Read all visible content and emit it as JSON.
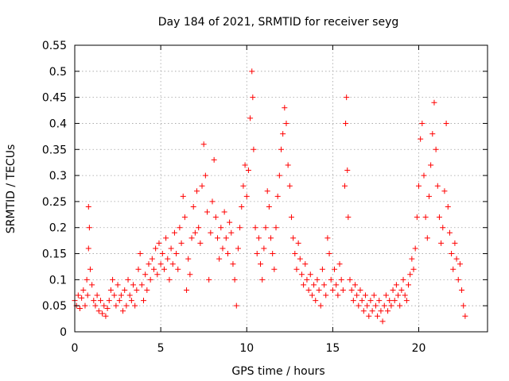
{
  "chart_data": {
    "type": "scatter",
    "title": "Day 184 of 2021, SRMTID for receiver seyg",
    "xlabel": "GPS time / hours",
    "ylabel": "SRMTID / TECUs",
    "xlim": [
      0,
      24
    ],
    "ylim": [
      0,
      0.55
    ],
    "xticks": [
      0,
      5,
      10,
      15,
      20
    ],
    "xtick_labels": [
      "0",
      "5",
      "10",
      "15",
      "20"
    ],
    "yticks": [
      0,
      0.05,
      0.1,
      0.15,
      0.2,
      0.25,
      0.3,
      0.35,
      0.4,
      0.45,
      0.5,
      0.55
    ],
    "ytick_labels": [
      "0",
      "0.05",
      "0.1",
      "0.15",
      "0.2",
      "0.25",
      "0.3",
      "0.35",
      "0.4",
      "0.45",
      "0.5",
      "0.55"
    ],
    "grid": true,
    "marker": "+",
    "series": [
      {
        "name": "SRMTID",
        "color": "#ff0000",
        "points": [
          [
            0.0,
            0.06
          ],
          [
            0.1,
            0.05
          ],
          [
            0.2,
            0.07
          ],
          [
            0.3,
            0.045
          ],
          [
            0.4,
            0.065
          ],
          [
            0.5,
            0.08
          ],
          [
            0.6,
            0.05
          ],
          [
            0.7,
            0.1
          ],
          [
            0.75,
            0.07
          ],
          [
            0.8,
            0.24
          ],
          [
            0.85,
            0.2
          ],
          [
            0.8,
            0.16
          ],
          [
            0.9,
            0.12
          ],
          [
            1.0,
            0.09
          ],
          [
            1.1,
            0.06
          ],
          [
            1.2,
            0.05
          ],
          [
            1.3,
            0.07
          ],
          [
            1.4,
            0.04
          ],
          [
            1.5,
            0.06
          ],
          [
            1.6,
            0.035
          ],
          [
            1.7,
            0.05
          ],
          [
            1.8,
            0.03
          ],
          [
            1.9,
            0.045
          ],
          [
            2.0,
            0.06
          ],
          [
            2.1,
            0.08
          ],
          [
            2.2,
            0.1
          ],
          [
            2.3,
            0.07
          ],
          [
            2.4,
            0.05
          ],
          [
            2.5,
            0.09
          ],
          [
            2.6,
            0.06
          ],
          [
            2.7,
            0.07
          ],
          [
            2.8,
            0.04
          ],
          [
            2.9,
            0.08
          ],
          [
            3.0,
            0.05
          ],
          [
            3.1,
            0.1
          ],
          [
            3.2,
            0.07
          ],
          [
            3.3,
            0.06
          ],
          [
            3.4,
            0.09
          ],
          [
            3.5,
            0.05
          ],
          [
            3.6,
            0.08
          ],
          [
            3.7,
            0.12
          ],
          [
            3.8,
            0.15
          ],
          [
            3.9,
            0.09
          ],
          [
            4.0,
            0.06
          ],
          [
            4.1,
            0.11
          ],
          [
            4.2,
            0.08
          ],
          [
            4.3,
            0.13
          ],
          [
            4.4,
            0.1
          ],
          [
            4.5,
            0.14
          ],
          [
            4.6,
            0.12
          ],
          [
            4.7,
            0.16
          ],
          [
            4.8,
            0.11
          ],
          [
            4.9,
            0.17
          ],
          [
            5.0,
            0.13
          ],
          [
            5.1,
            0.15
          ],
          [
            5.2,
            0.12
          ],
          [
            5.3,
            0.18
          ],
          [
            5.4,
            0.14
          ],
          [
            5.5,
            0.1
          ],
          [
            5.6,
            0.16
          ],
          [
            5.7,
            0.13
          ],
          [
            5.8,
            0.19
          ],
          [
            5.9,
            0.15
          ],
          [
            6.0,
            0.12
          ],
          [
            6.1,
            0.2
          ],
          [
            6.2,
            0.17
          ],
          [
            6.3,
            0.26
          ],
          [
            6.4,
            0.22
          ],
          [
            6.5,
            0.08
          ],
          [
            6.6,
            0.14
          ],
          [
            6.7,
            0.11
          ],
          [
            6.8,
            0.18
          ],
          [
            6.9,
            0.24
          ],
          [
            7.0,
            0.19
          ],
          [
            7.1,
            0.27
          ],
          [
            7.2,
            0.2
          ],
          [
            7.3,
            0.17
          ],
          [
            7.4,
            0.28
          ],
          [
            7.5,
            0.36
          ],
          [
            7.6,
            0.3
          ],
          [
            7.7,
            0.23
          ],
          [
            7.8,
            0.1
          ],
          [
            7.9,
            0.19
          ],
          [
            8.0,
            0.25
          ],
          [
            8.1,
            0.33
          ],
          [
            8.2,
            0.22
          ],
          [
            8.3,
            0.18
          ],
          [
            8.4,
            0.14
          ],
          [
            8.5,
            0.2
          ],
          [
            8.6,
            0.16
          ],
          [
            8.7,
            0.23
          ],
          [
            8.8,
            0.18
          ],
          [
            8.9,
            0.15
          ],
          [
            9.0,
            0.21
          ],
          [
            9.1,
            0.19
          ],
          [
            9.2,
            0.13
          ],
          [
            9.3,
            0.1
          ],
          [
            9.4,
            0.05
          ],
          [
            9.5,
            0.16
          ],
          [
            9.6,
            0.2
          ],
          [
            9.7,
            0.24
          ],
          [
            9.8,
            0.28
          ],
          [
            9.9,
            0.32
          ],
          [
            10.0,
            0.26
          ],
          [
            10.1,
            0.31
          ],
          [
            10.2,
            0.41
          ],
          [
            10.3,
            0.5
          ],
          [
            10.35,
            0.45
          ],
          [
            10.4,
            0.35
          ],
          [
            10.5,
            0.2
          ],
          [
            10.6,
            0.15
          ],
          [
            10.7,
            0.18
          ],
          [
            10.8,
            0.13
          ],
          [
            10.9,
            0.1
          ],
          [
            11.0,
            0.16
          ],
          [
            11.1,
            0.2
          ],
          [
            11.2,
            0.27
          ],
          [
            11.3,
            0.24
          ],
          [
            11.4,
            0.18
          ],
          [
            11.5,
            0.15
          ],
          [
            11.6,
            0.12
          ],
          [
            11.7,
            0.2
          ],
          [
            11.8,
            0.26
          ],
          [
            11.9,
            0.3
          ],
          [
            12.0,
            0.35
          ],
          [
            12.1,
            0.38
          ],
          [
            12.2,
            0.43
          ],
          [
            12.3,
            0.4
          ],
          [
            12.4,
            0.32
          ],
          [
            12.5,
            0.28
          ],
          [
            12.6,
            0.22
          ],
          [
            12.7,
            0.18
          ],
          [
            12.8,
            0.15
          ],
          [
            12.9,
            0.12
          ],
          [
            13.0,
            0.17
          ],
          [
            13.1,
            0.14
          ],
          [
            13.2,
            0.11
          ],
          [
            13.3,
            0.09
          ],
          [
            13.4,
            0.13
          ],
          [
            13.5,
            0.1
          ],
          [
            13.6,
            0.08
          ],
          [
            13.7,
            0.11
          ],
          [
            13.8,
            0.07
          ],
          [
            13.9,
            0.09
          ],
          [
            14.0,
            0.06
          ],
          [
            14.1,
            0.1
          ],
          [
            14.2,
            0.08
          ],
          [
            14.3,
            0.05
          ],
          [
            14.4,
            0.12
          ],
          [
            14.5,
            0.09
          ],
          [
            14.6,
            0.07
          ],
          [
            14.7,
            0.18
          ],
          [
            14.8,
            0.15
          ],
          [
            14.9,
            0.1
          ],
          [
            15.0,
            0.08
          ],
          [
            15.1,
            0.12
          ],
          [
            15.2,
            0.09
          ],
          [
            15.3,
            0.07
          ],
          [
            15.4,
            0.13
          ],
          [
            15.5,
            0.1
          ],
          [
            15.6,
            0.08
          ],
          [
            15.7,
            0.28
          ],
          [
            15.75,
            0.4
          ],
          [
            15.8,
            0.45
          ],
          [
            15.85,
            0.31
          ],
          [
            15.9,
            0.22
          ],
          [
            16.0,
            0.1
          ],
          [
            16.1,
            0.08
          ],
          [
            16.2,
            0.06
          ],
          [
            16.3,
            0.09
          ],
          [
            16.4,
            0.07
          ],
          [
            16.5,
            0.05
          ],
          [
            16.6,
            0.08
          ],
          [
            16.7,
            0.06
          ],
          [
            16.8,
            0.04
          ],
          [
            16.9,
            0.07
          ],
          [
            17.0,
            0.05
          ],
          [
            17.1,
            0.03
          ],
          [
            17.2,
            0.06
          ],
          [
            17.3,
            0.04
          ],
          [
            17.4,
            0.07
          ],
          [
            17.5,
            0.05
          ],
          [
            17.6,
            0.03
          ],
          [
            17.7,
            0.06
          ],
          [
            17.8,
            0.04
          ],
          [
            17.9,
            0.02
          ],
          [
            18.0,
            0.05
          ],
          [
            18.1,
            0.07
          ],
          [
            18.2,
            0.04
          ],
          [
            18.3,
            0.06
          ],
          [
            18.4,
            0.05
          ],
          [
            18.5,
            0.08
          ],
          [
            18.6,
            0.06
          ],
          [
            18.7,
            0.09
          ],
          [
            18.8,
            0.07
          ],
          [
            18.9,
            0.05
          ],
          [
            19.0,
            0.08
          ],
          [
            19.1,
            0.1
          ],
          [
            19.2,
            0.07
          ],
          [
            19.3,
            0.06
          ],
          [
            19.4,
            0.09
          ],
          [
            19.5,
            0.11
          ],
          [
            19.6,
            0.14
          ],
          [
            19.7,
            0.12
          ],
          [
            19.8,
            0.16
          ],
          [
            19.9,
            0.22
          ],
          [
            20.0,
            0.28
          ],
          [
            20.1,
            0.37
          ],
          [
            20.2,
            0.4
          ],
          [
            20.3,
            0.3
          ],
          [
            20.4,
            0.22
          ],
          [
            20.5,
            0.18
          ],
          [
            20.6,
            0.26
          ],
          [
            20.7,
            0.32
          ],
          [
            20.8,
            0.38
          ],
          [
            20.9,
            0.44
          ],
          [
            21.0,
            0.35
          ],
          [
            21.1,
            0.28
          ],
          [
            21.2,
            0.22
          ],
          [
            21.3,
            0.17
          ],
          [
            21.4,
            0.2
          ],
          [
            21.5,
            0.27
          ],
          [
            21.6,
            0.4
          ],
          [
            21.7,
            0.24
          ],
          [
            21.8,
            0.19
          ],
          [
            21.9,
            0.15
          ],
          [
            22.0,
            0.12
          ],
          [
            22.1,
            0.17
          ],
          [
            22.2,
            0.14
          ],
          [
            22.3,
            0.1
          ],
          [
            22.4,
            0.13
          ],
          [
            22.5,
            0.08
          ],
          [
            22.6,
            0.05
          ],
          [
            22.7,
            0.03
          ]
        ]
      }
    ]
  }
}
